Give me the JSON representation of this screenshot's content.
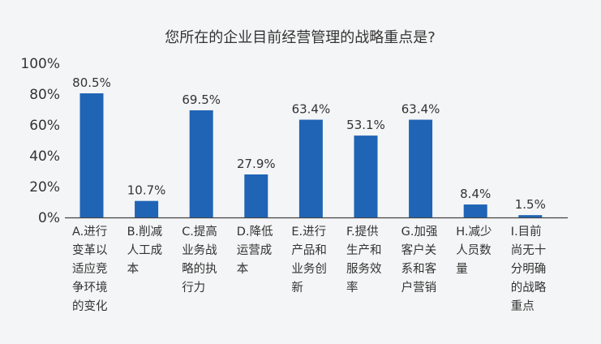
{
  "chart_data": {
    "type": "bar",
    "title": "您所在的企业目前经营管理的战略重点是?",
    "categories": [
      "A.进行变革以适应竞争环境的变化",
      "B.削减人工成本",
      "C.提高业务战略的执行力",
      "D.降低运营成本",
      "E.进行产品和业务创新",
      "F.提供生产和服务效率",
      "G.加强客户关系和客户营销",
      "H.减少人员数量",
      "I.目前尚无十分明确的战略重点"
    ],
    "category_lines": [
      [
        "A.进行",
        "变革以",
        "适应竞",
        "争环境",
        "的变化"
      ],
      [
        "B.削减",
        "人工成",
        "本"
      ],
      [
        "C.提高",
        "业务战",
        "略的执",
        "行力"
      ],
      [
        "D.降低",
        "运营成",
        "本"
      ],
      [
        "E.进行",
        "产品和",
        "业务创",
        "新"
      ],
      [
        "F.提供",
        "生产和",
        "服务效",
        "率"
      ],
      [
        "G.加强",
        "客户关",
        "系和客",
        "户营销"
      ],
      [
        "H.减少",
        "人员数",
        "量"
      ],
      [
        "I.目前",
        "尚无十",
        "分明确",
        "的战略",
        "重点"
      ]
    ],
    "values": [
      80.5,
      10.7,
      69.5,
      27.9,
      63.4,
      53.1,
      63.4,
      8.4,
      1.5
    ],
    "value_labels": [
      "80.5%",
      "10.7%",
      "69.5%",
      "27.9%",
      "63.4%",
      "53.1%",
      "63.4%",
      "8.4%",
      "1.5%"
    ],
    "yticks": [
      "0%",
      "20%",
      "40%",
      "60%",
      "80%",
      "100%"
    ],
    "ylim": [
      0,
      100
    ],
    "xlabel": "",
    "ylabel": "",
    "grid": false,
    "bar_color": "#1f64b5"
  }
}
